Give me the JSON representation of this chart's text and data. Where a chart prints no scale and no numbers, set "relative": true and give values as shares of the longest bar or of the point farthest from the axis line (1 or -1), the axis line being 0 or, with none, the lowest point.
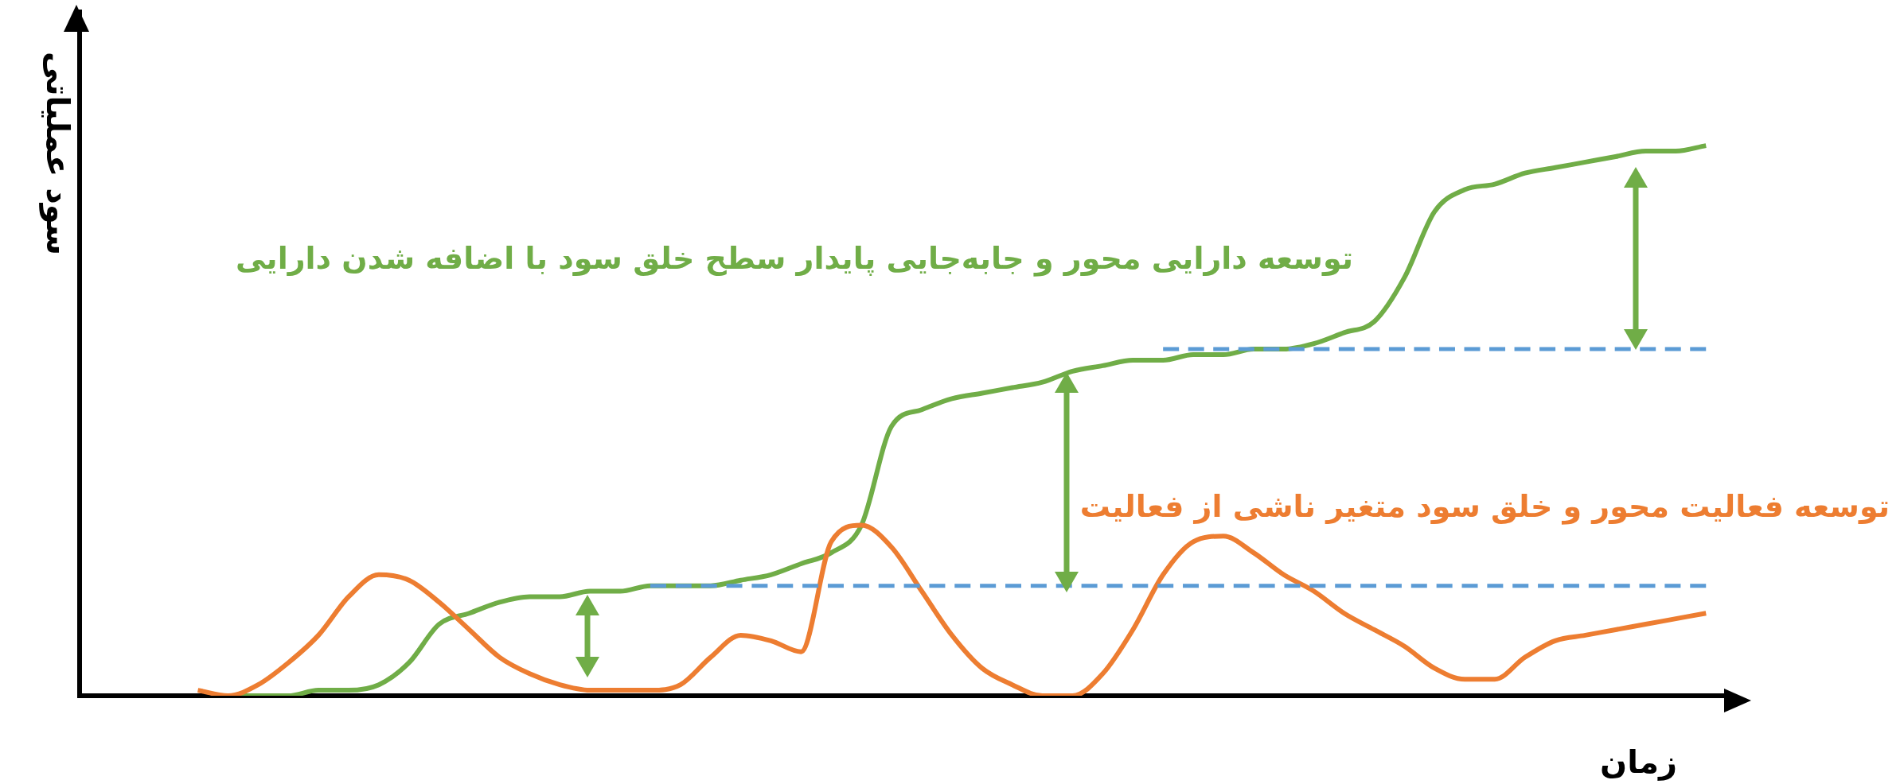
{
  "chart_data": {
    "type": "line",
    "relative": true,
    "ylabel": "سود عملیاتی",
    "xlabel": "زمان",
    "legend": false,
    "grid": false,
    "marker": "none",
    "categories": [
      null,
      null,
      null,
      null,
      null,
      null,
      null,
      null,
      null,
      null,
      null,
      null,
      null,
      null,
      null,
      null,
      null,
      null,
      null,
      null,
      null,
      null,
      null,
      null,
      null,
      null,
      null,
      null,
      null,
      null,
      null,
      null,
      null,
      null,
      null,
      null,
      null,
      null,
      null,
      null,
      null,
      null,
      null,
      null,
      null,
      null,
      null,
      null,
      null,
      null,
      null
    ],
    "annotations": [
      "توسعه دارایی محور و جابه‌جایی پایدار سطح خلق سود با اضافه شدن دارایی",
      "توسعه فعالیت محور و خلق سود متغیر ناشی از فعالیت"
    ],
    "series": [
      {
        "color": "#70ad47",
        "line_style": "solid",
        "values": [
          null,
          0,
          0,
          0,
          0.01,
          0.01,
          0.02,
          0.06,
          0.13,
          0.15,
          0.17,
          0.18,
          0.18,
          0.19,
          0.19,
          0.2,
          0.2,
          0.2,
          0.21,
          0.22,
          0.24,
          0.26,
          0.31,
          0.49,
          0.52,
          0.54,
          0.55,
          0.56,
          0.57,
          0.59,
          0.6,
          0.61,
          0.61,
          0.62,
          0.62,
          0.63,
          0.63,
          0.64,
          0.66,
          0.68,
          0.76,
          0.88,
          0.92,
          0.93,
          0.95,
          0.96,
          0.97,
          0.98,
          0.99,
          0.99,
          1
        ]
      },
      {
        "color": "#ed7d31",
        "line_style": "solid",
        "values": [
          0.01,
          0,
          0.02,
          0.06,
          0.11,
          0.18,
          0.22,
          0.21,
          0.17,
          0.12,
          0.07,
          0.04,
          0.02,
          0.01,
          0.01,
          0.01,
          0.02,
          0.07,
          0.11,
          0.1,
          0.08,
          0.28,
          0.31,
          0.27,
          0.19,
          0.11,
          0.05,
          0.02,
          0,
          0,
          0.04,
          0.12,
          0.22,
          0.28,
          0.29,
          0.26,
          0.22,
          0.19,
          0.15,
          0.12,
          0.09,
          0.05,
          0.03,
          0.03,
          0.07,
          0.1,
          0.11,
          0.12,
          0.13,
          0.14,
          0.15
        ]
      },
      {
        "color": "#5b9bd5",
        "line_style": "dashed",
        "values": [
          null,
          null,
          null,
          null,
          null,
          null,
          null,
          null,
          null,
          null,
          null,
          null,
          null,
          null,
          null,
          0.2,
          0.2,
          0.2,
          0.2,
          0.2,
          0.2,
          0.2,
          0.2,
          0.2,
          0.2,
          0.2,
          0.2,
          0.2,
          0.2,
          0.2,
          0.2,
          0.2,
          0.2,
          0.2,
          0.2,
          0.2,
          0.2,
          0.2,
          0.2,
          0.2,
          0.2,
          0.2,
          0.2,
          0.2,
          0.2,
          0.2,
          0.2,
          0.2,
          0.2,
          0.2,
          0.2
        ]
      },
      {
        "color": "#5b9bd5",
        "line_style": "dashed",
        "values": [
          null,
          null,
          null,
          null,
          null,
          null,
          null,
          null,
          null,
          null,
          null,
          null,
          null,
          null,
          null,
          null,
          null,
          null,
          null,
          null,
          null,
          null,
          null,
          null,
          null,
          null,
          null,
          null,
          null,
          null,
          null,
          null,
          0.63,
          0.63,
          0.63,
          0.63,
          0.63,
          0.63,
          0.63,
          0.63,
          0.63,
          0.63,
          0.63,
          0.63,
          0.63,
          0.63,
          0.63,
          0.63,
          0.63,
          0.63,
          0.63
        ]
      }
    ]
  }
}
